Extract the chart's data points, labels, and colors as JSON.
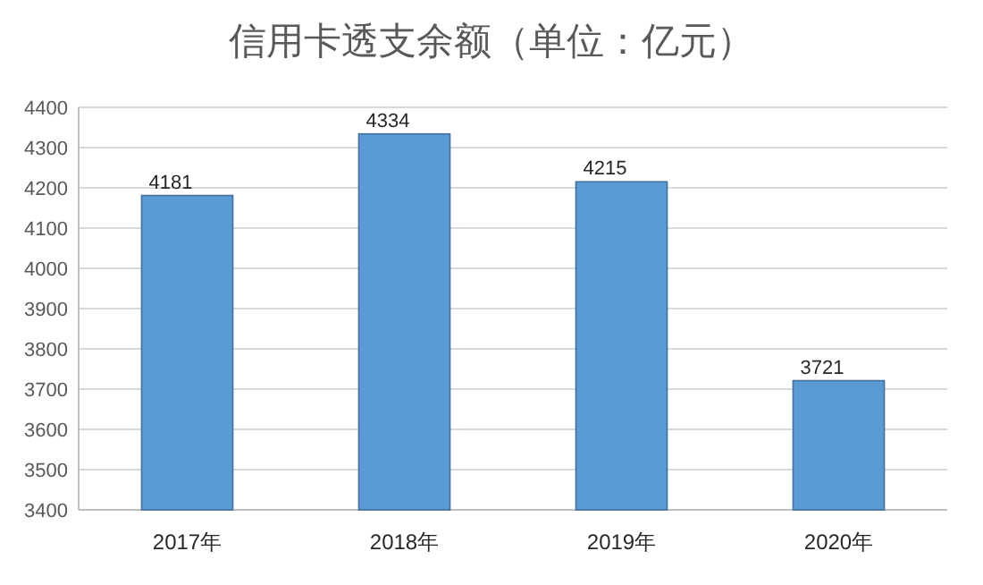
{
  "chart_data": {
    "type": "bar",
    "title": "信用卡透支余额（单位：亿元）",
    "categories": [
      "2017年",
      "2018年",
      "2019年",
      "2020年"
    ],
    "values": [
      4181,
      4334,
      4215,
      3721
    ],
    "color": "#5b9bd5",
    "ylim": [
      3400,
      4400
    ],
    "yticks": [
      3400,
      3500,
      3600,
      3700,
      3800,
      3900,
      4000,
      4100,
      4200,
      4300,
      4400
    ],
    "grid": "y",
    "data_labels": true
  }
}
